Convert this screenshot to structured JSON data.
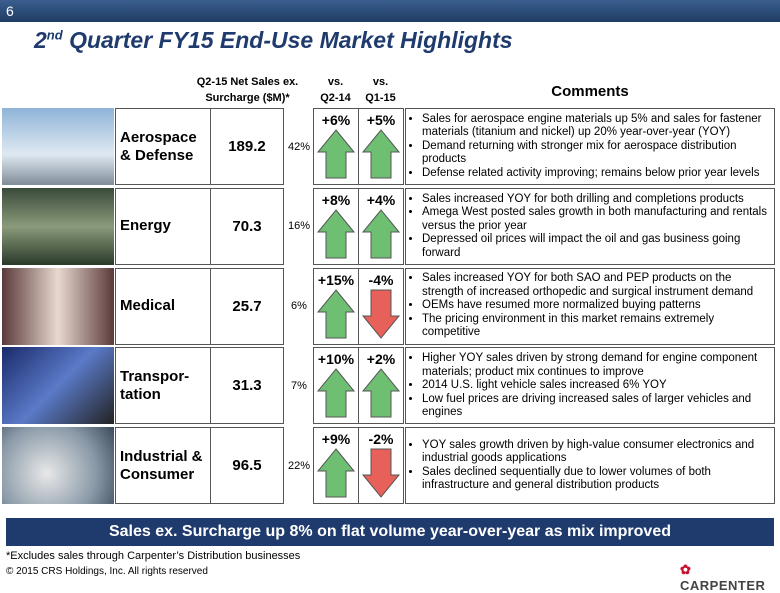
{
  "slide_number": "6",
  "title": {
    "number": "2",
    "suffix": "nd",
    "text": "Quarter FY15 End-Use Market Highlights"
  },
  "headers": {
    "sales": [
      "Q2-15 Net Sales ex.",
      "Surcharge ($M)*"
    ],
    "yoy": [
      "vs.",
      "Q2-14"
    ],
    "qoq": [
      "vs.",
      "Q1-15"
    ],
    "comments": "Comments"
  },
  "rows": [
    {
      "name": [
        "Aerospace",
        "& Defense"
      ],
      "sales": 189.2,
      "share": "42%",
      "yoy": "+6%",
      "qoq": "+5%",
      "comments": [
        "Sales for aerospace engine materials up 5% and sales for fastener materials (titanium and nickel) up 20% year-over-year (YOY)",
        "Demand returning with stronger mix for aerospace distribution products",
        "Defense related activity improving; remains below prior year levels"
      ]
    },
    {
      "name": [
        "Energy"
      ],
      "sales": 70.3,
      "share": "16%",
      "yoy": "+8%",
      "qoq": "+4%",
      "comments": [
        "Sales increased YOY for both drilling and completions products",
        "Amega West posted sales growth in both manufacturing and rentals versus the prior year",
        "Depressed oil prices will impact the oil and gas business going forward"
      ]
    },
    {
      "name": [
        "Medical"
      ],
      "sales": 25.7,
      "share": "6%",
      "yoy": "+15%",
      "qoq": "-4%",
      "comments": [
        "Sales increased YOY for both SAO and PEP products on the strength of increased orthopedic and surgical instrument demand",
        "OEMs have resumed more normalized buying patterns",
        "The pricing environment in this market remains extremely competitive"
      ]
    },
    {
      "name": [
        "Transpor-",
        "tation"
      ],
      "sales": 31.3,
      "share": "7%",
      "yoy": "+10%",
      "qoq": "+2%",
      "comments": [
        "Higher YOY sales driven by strong demand for engine component materials; product mix continues to improve",
        "2014 U.S. light vehicle sales increased 6% YOY",
        "Low fuel prices are driving increased sales of larger vehicles and engines"
      ]
    },
    {
      "name": [
        "Industrial &",
        "Consumer"
      ],
      "sales": 96.5,
      "share": "22%",
      "yoy": "+9%",
      "qoq": "-2%",
      "comments": [
        "YOY sales growth driven by high-value consumer electronics and industrial goods applications",
        "Sales declined sequentially due to lower volumes of both infrastructure and general distribution products"
      ]
    }
  ],
  "banner": "Sales ex. Surcharge up 8% on flat volume year-over-year as mix improved",
  "footnote": "*Excludes sales through Carpenter’s Distribution businesses",
  "copyright": "© 2015 CRS Holdings, Inc.   All rights reserved",
  "logo": "CARPENTER"
}
